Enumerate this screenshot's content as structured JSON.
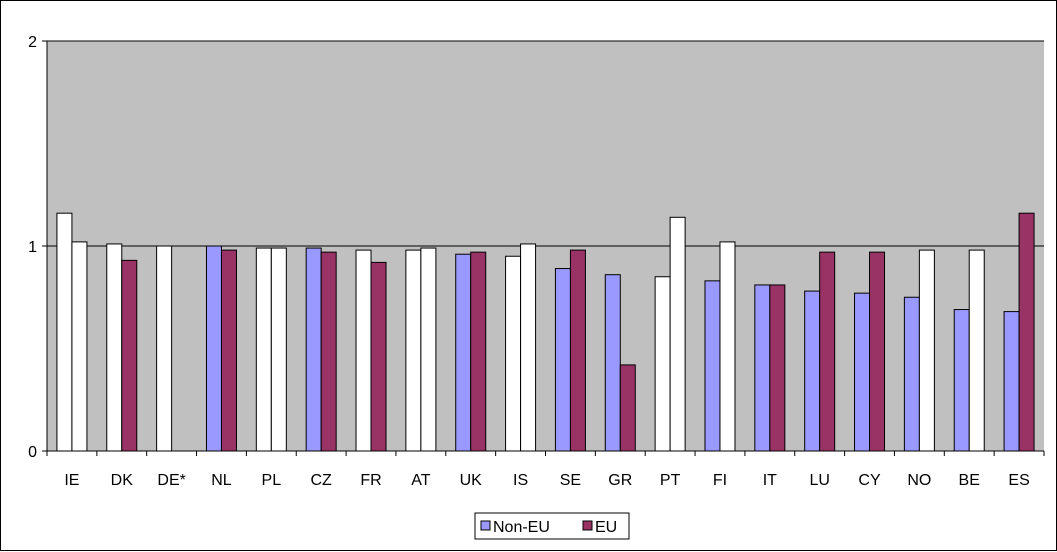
{
  "chart_data": {
    "type": "bar",
    "title": "",
    "xlabel": "",
    "ylabel": "",
    "ylim": [
      0,
      2
    ],
    "yticks": [
      "0",
      "1",
      "2"
    ],
    "grid": "horizontal major gridlines",
    "plot_background": "#C0C0C0",
    "legend_position": "bottom",
    "categories": [
      "IE",
      "DK",
      "DE*",
      "NL",
      "PL",
      "CZ",
      "FR",
      "AT",
      "UK",
      "IS",
      "SE",
      "GR",
      "PT",
      "FI",
      "IT",
      "LU",
      "CY",
      "NO",
      "BE",
      "ES"
    ],
    "series": [
      {
        "name": "Non-EU",
        "color": "#9999FF",
        "values": [
          1.16,
          1.01,
          1.0,
          1.0,
          0.99,
          0.99,
          0.98,
          0.98,
          0.96,
          0.95,
          0.89,
          0.86,
          0.85,
          0.83,
          0.81,
          0.78,
          0.77,
          0.75,
          0.69,
          0.68
        ],
        "white_fill": [
          true,
          true,
          true,
          false,
          true,
          false,
          true,
          true,
          false,
          true,
          false,
          false,
          true,
          false,
          false,
          false,
          false,
          false,
          false,
          false
        ]
      },
      {
        "name": "EU",
        "color": "#993366",
        "values": [
          1.02,
          0.93,
          null,
          0.98,
          0.99,
          0.97,
          0.92,
          0.99,
          0.97,
          1.01,
          0.98,
          0.42,
          1.14,
          1.02,
          0.81,
          0.97,
          0.97,
          0.98,
          0.98,
          1.16
        ],
        "white_fill": [
          true,
          false,
          false,
          false,
          true,
          false,
          false,
          true,
          false,
          true,
          false,
          false,
          true,
          true,
          false,
          false,
          false,
          true,
          true,
          false
        ]
      }
    ]
  }
}
